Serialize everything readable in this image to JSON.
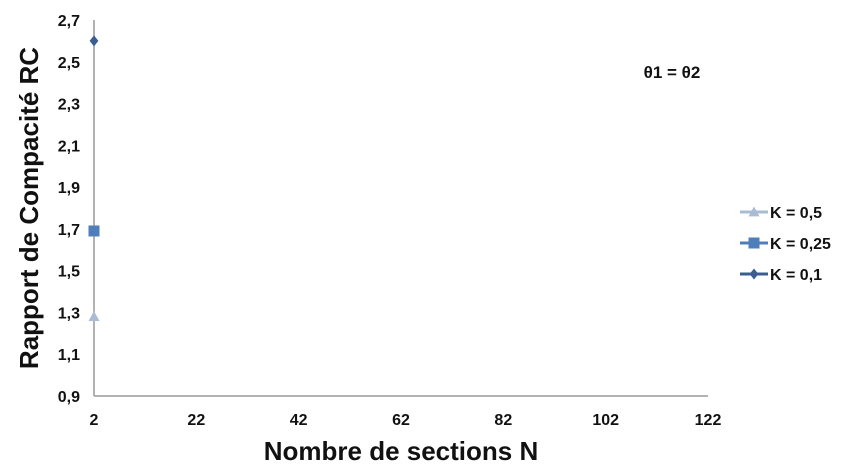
{
  "chart_data": {
    "type": "scatter",
    "xlabel": "Nombre de sections N",
    "ylabel": "Rapport de Compacité RC",
    "xlim": [
      2,
      122
    ],
    "ylim": [
      0.9,
      2.7
    ],
    "x_ticks": [
      "2",
      "22",
      "42",
      "62",
      "82",
      "102",
      "122"
    ],
    "y_ticks": [
      "0,9",
      "1,1",
      "1,3",
      "1,5",
      "1,7",
      "1,9",
      "2,1",
      "2,3",
      "2,5",
      "2,7"
    ],
    "annotation": "θ1 = θ2",
    "grid": false,
    "legend_position": "right",
    "series": [
      {
        "name": "K = 0,5",
        "marker": "triangle",
        "color": "#a9bcd6",
        "x": [
          2
        ],
        "y": [
          1.28
        ]
      },
      {
        "name": "K = 0,25",
        "marker": "square",
        "color": "#4f7ebd",
        "x": [
          2
        ],
        "y": [
          1.69
        ]
      },
      {
        "name": "K = 0,1",
        "marker": "diamond",
        "color": "#3b5d8f",
        "x": [
          2
        ],
        "y": [
          2.6
        ]
      }
    ]
  }
}
